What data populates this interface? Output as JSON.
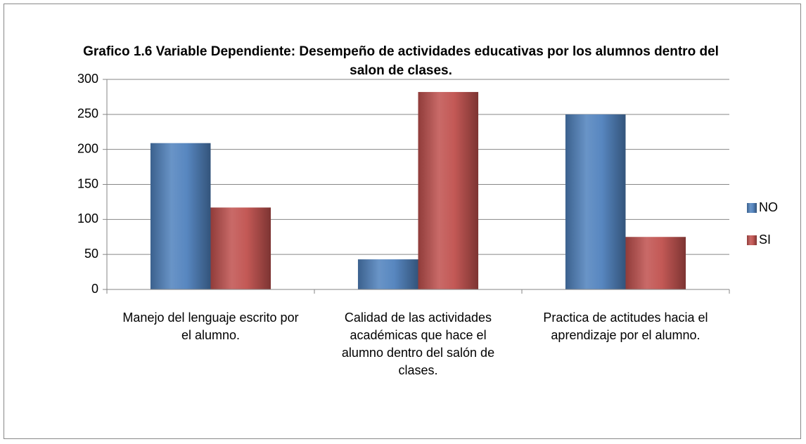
{
  "chart_data": {
    "type": "bar",
    "title": "Grafico 1.6 Variable Dependiente: Desempeño de actividades educativas por los alumnos dentro del salon de clases.",
    "categories": [
      "Manejo del lenguaje escrito por el alumno.",
      "Calidad de las actividades académicas que hace el alumno dentro del salón de clases.",
      "Practica de actitudes hacia el aprendizaje por el alumno."
    ],
    "series": [
      {
        "name": "NO",
        "color": "#4f81bd",
        "values": [
          209,
          43,
          250
        ]
      },
      {
        "name": "SI",
        "color": "#c0504d",
        "values": [
          117,
          282,
          75
        ]
      }
    ],
    "ylim": [
      0,
      300
    ],
    "yticks": [
      0,
      50,
      100,
      150,
      200,
      250,
      300
    ],
    "grid": true,
    "legend": "right"
  }
}
